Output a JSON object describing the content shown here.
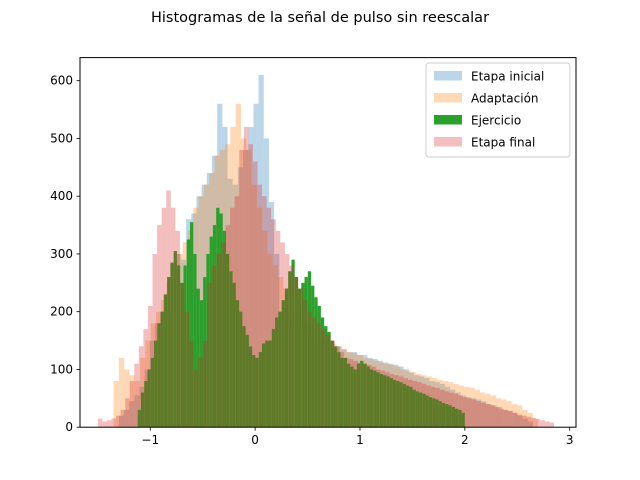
{
  "chart_data": {
    "type": "bar",
    "title": "Histogramas de la señal de pulso sin reescalar",
    "xlabel": "",
    "ylabel": "",
    "xlim": [
      -1.67,
      3.06
    ],
    "ylim": [
      0,
      640
    ],
    "x_ticks": [
      -1,
      0,
      1,
      2,
      3
    ],
    "x_tick_labels": [
      "−1",
      "0",
      "1",
      "2",
      "3"
    ],
    "y_ticks": [
      0,
      100,
      200,
      300,
      400,
      500,
      600
    ],
    "y_tick_labels": [
      "0",
      "100",
      "200",
      "300",
      "400",
      "500",
      "600"
    ],
    "grid": false,
    "legend_position": "top-right",
    "series": [
      {
        "name": "Etapa inicial",
        "color": "#1f77b4",
        "opacity": 0.3,
        "bins": 80,
        "range": [
          -1.3,
          2.65
        ],
        "values": [
          20,
          30,
          45,
          55,
          70,
          100,
          150,
          180,
          200,
          200,
          260,
          300,
          290,
          360,
          370,
          400,
          420,
          440,
          470,
          560,
          520,
          430,
          420,
          450,
          480,
          520,
          560,
          610,
          500,
          390,
          300,
          200,
          190,
          180,
          170,
          175,
          165,
          160,
          150,
          150,
          145,
          140,
          140,
          135,
          130,
          130,
          125,
          125,
          120,
          118,
          115,
          112,
          110,
          108,
          105,
          100,
          95,
          90,
          88,
          85,
          80,
          78,
          75,
          70,
          65,
          60,
          55,
          52,
          50,
          48,
          45,
          40,
          38,
          35,
          30,
          28,
          25,
          20,
          15,
          10
        ]
      },
      {
        "name": "Adaptación",
        "color": "#ff7f0e",
        "opacity": 0.3,
        "bins": 80,
        "range": [
          -1.35,
          2.7
        ],
        "values": [
          80,
          120,
          100,
          90,
          80,
          120,
          150,
          180,
          200,
          220,
          250,
          280,
          300,
          320,
          340,
          380,
          400,
          420,
          440,
          470,
          480,
          490,
          520,
          560,
          500,
          480,
          420,
          380,
          340,
          300,
          280,
          260,
          240,
          220,
          200,
          190,
          180,
          170,
          165,
          160,
          150,
          145,
          140,
          135,
          130,
          128,
          125,
          120,
          118,
          115,
          112,
          110,
          108,
          105,
          100,
          98,
          95,
          92,
          90,
          88,
          85,
          82,
          80,
          78,
          75,
          72,
          70,
          68,
          65,
          60,
          58,
          55,
          50,
          48,
          45,
          40,
          38,
          30,
          25,
          15
        ]
      },
      {
        "name": "Ejercicio",
        "color": "#2ca02c",
        "opacity": 1.0,
        "bins": 100,
        "range": [
          -1.12,
          2.0
        ],
        "values": [
          30,
          60,
          80,
          100,
          120,
          150,
          180,
          200,
          230,
          260,
          285,
          305,
          280,
          250,
          280,
          325,
          355,
          300,
          240,
          220,
          260,
          300,
          330,
          350,
          380,
          370,
          340,
          300,
          270,
          250,
          220,
          200,
          175,
          160,
          140,
          125,
          120,
          130,
          145,
          150,
          150,
          170,
          190,
          200,
          220,
          240,
          270,
          290,
          260,
          240,
          250,
          260,
          270,
          245,
          225,
          210,
          190,
          175,
          165,
          150,
          140,
          130,
          120,
          120,
          110,
          105,
          100,
          110,
          115,
          110,
          105,
          100,
          98,
          95,
          92,
          90,
          88,
          85,
          82,
          80,
          78,
          75,
          72,
          70,
          65,
          62,
          60,
          58,
          55,
          52,
          50,
          48,
          45,
          42,
          40,
          38,
          35,
          32,
          30,
          25
        ]
      },
      {
        "name": "Etapa final",
        "color": "#d62728",
        "opacity": 0.3,
        "bins": 100,
        "range": [
          -1.5,
          2.85
        ],
        "values": [
          15,
          10,
          12,
          15,
          20,
          30,
          50,
          80,
          110,
          140,
          170,
          210,
          300,
          350,
          380,
          410,
          380,
          340,
          250,
          200,
          150,
          100,
          120,
          150,
          250,
          280,
          300,
          320,
          350,
          380,
          400,
          480,
          520,
          490,
          460,
          420,
          400,
          380,
          360,
          340,
          320,
          300,
          280,
          260,
          240,
          220,
          200,
          190,
          180,
          170,
          160,
          150,
          140,
          130,
          120,
          118,
          115,
          112,
          110,
          108,
          105,
          100,
          98,
          95,
          92,
          90,
          88,
          85,
          82,
          80,
          78,
          75,
          72,
          70,
          68,
          65,
          62,
          60,
          58,
          55,
          52,
          50,
          48,
          45,
          42,
          40,
          38,
          35,
          32,
          30,
          28,
          25,
          22,
          20,
          18,
          16,
          14,
          12,
          10,
          8
        ]
      }
    ]
  }
}
